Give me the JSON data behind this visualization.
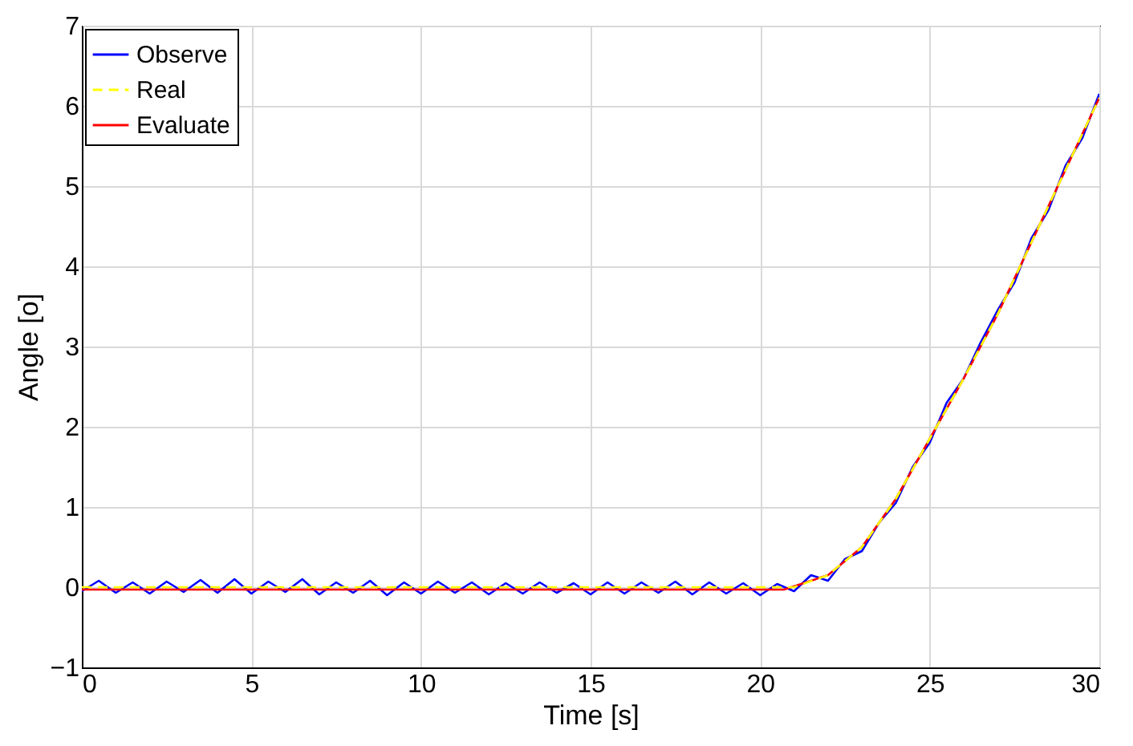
{
  "chart_data": {
    "type": "line",
    "xlabel": "Time [s]",
    "ylabel": "Angle [o]",
    "xlim": [
      0,
      30
    ],
    "ylim": [
      -1,
      7
    ],
    "xticks": [
      0,
      5,
      10,
      15,
      20,
      25,
      30
    ],
    "yticks": [
      -1,
      0,
      1,
      2,
      3,
      4,
      5,
      6,
      7
    ],
    "grid": true,
    "legend": "top left",
    "series": [
      {
        "name": "Observe",
        "color": "#0000ff",
        "line_style": "solid",
        "x": [
          0,
          0.5,
          1,
          1.5,
          2,
          2.5,
          3,
          3.5,
          4,
          4.5,
          5,
          5.5,
          6,
          6.5,
          7,
          7.5,
          8,
          8.5,
          9,
          9.5,
          10,
          10.5,
          11,
          11.5,
          12,
          12.5,
          13,
          13.5,
          14,
          14.5,
          15,
          15.5,
          16,
          16.5,
          17,
          17.5,
          18,
          18.5,
          19,
          19.5,
          20,
          20.5,
          21,
          21.5,
          22,
          22.5,
          23,
          23.5,
          24,
          24.5,
          25,
          25.5,
          26,
          26.5,
          27,
          27.5,
          28,
          28.5,
          29,
          29.5,
          30
        ],
        "values": [
          -0.05,
          0.08,
          -0.07,
          0.06,
          -0.08,
          0.07,
          -0.06,
          0.09,
          -0.07,
          0.1,
          -0.08,
          0.07,
          -0.06,
          0.1,
          -0.09,
          0.06,
          -0.07,
          0.08,
          -0.1,
          0.06,
          -0.08,
          0.07,
          -0.07,
          0.06,
          -0.09,
          0.05,
          -0.08,
          0.06,
          -0.07,
          0.05,
          -0.09,
          0.06,
          -0.08,
          0.06,
          -0.07,
          0.07,
          -0.09,
          0.06,
          -0.08,
          0.05,
          -0.1,
          0.04,
          -0.05,
          0.15,
          0.08,
          0.35,
          0.45,
          0.8,
          1.05,
          1.5,
          1.8,
          2.3,
          2.6,
          3.05,
          3.45,
          3.8,
          4.35,
          4.7,
          5.25,
          5.6,
          6.15
        ]
      },
      {
        "name": "Real",
        "color": "#ffff00",
        "line_style": "dashed",
        "x": [
          0,
          21,
          22,
          23,
          24,
          25,
          26,
          27,
          28,
          29,
          30
        ],
        "values": [
          0,
          0,
          0.15,
          0.5,
          1.1,
          1.85,
          2.6,
          3.4,
          4.3,
          5.2,
          6.1
        ]
      },
      {
        "name": "Evaluate",
        "color": "#ff0000",
        "line_style": "solid",
        "x": [
          0,
          20.7,
          22,
          23,
          24,
          25,
          26,
          27,
          28,
          29,
          30
        ],
        "values": [
          -0.03,
          -0.03,
          0.15,
          0.5,
          1.1,
          1.85,
          2.6,
          3.4,
          4.3,
          5.2,
          6.1
        ]
      }
    ]
  }
}
